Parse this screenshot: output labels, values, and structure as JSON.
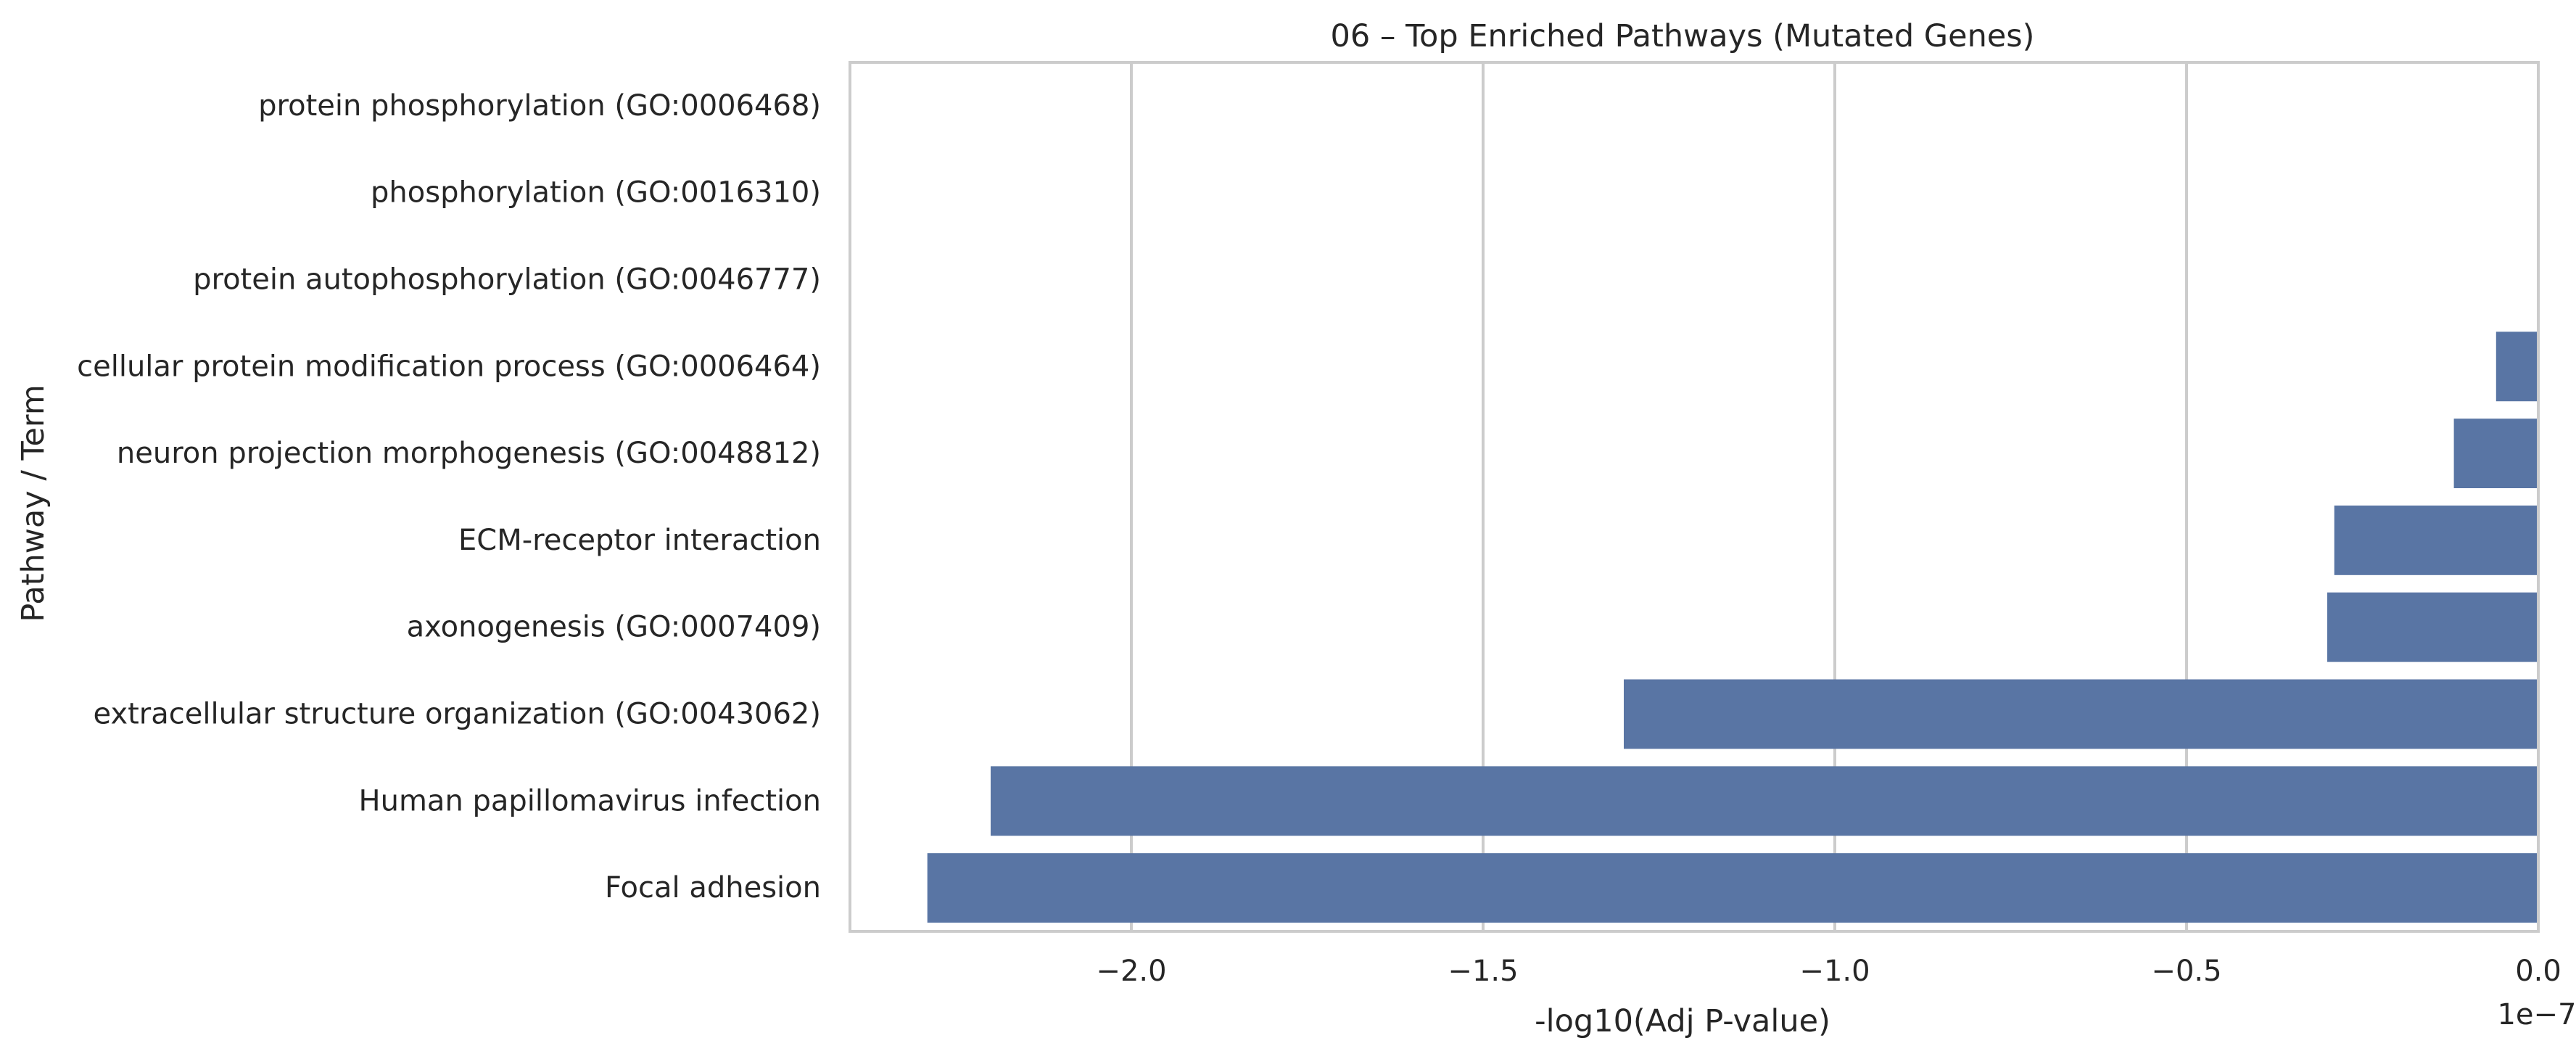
{
  "chart_data": {
    "type": "bar",
    "orientation": "horizontal",
    "title": "06 – Top Enriched Pathways (Mutated Genes)",
    "xlabel": "-log10(Adj P-value)",
    "ylabel": "Pathway / Term",
    "x_scale_label": "1e−7",
    "x_scale_factor": 1e-07,
    "xlim": [
      -2.4,
      0.0
    ],
    "xticks": [
      -2.0,
      -1.5,
      -1.0,
      -0.5,
      0.0
    ],
    "xtick_labels": [
      "−2.0",
      "−1.5",
      "−1.0",
      "−0.5",
      "0.0"
    ],
    "grid": "vertical",
    "bar_color": "#5975a4",
    "categories": [
      "protein phosphorylation (GO:0006468)",
      "phosphorylation (GO:0016310)",
      "protein autophosphorylation (GO:0046777)",
      "cellular protein modification process (GO:0006464)",
      "neuron projection morphogenesis (GO:0048812)",
      "ECM-receptor interaction",
      "axonogenesis (GO:0007409)",
      "extracellular structure organization (GO:0043062)",
      "Human papillomavirus infection",
      "Focal adhesion"
    ],
    "values": [
      0.0,
      0.0,
      0.0,
      -0.06,
      -0.12,
      -0.29,
      -0.3,
      -1.3,
      -2.2,
      -2.29
    ]
  }
}
